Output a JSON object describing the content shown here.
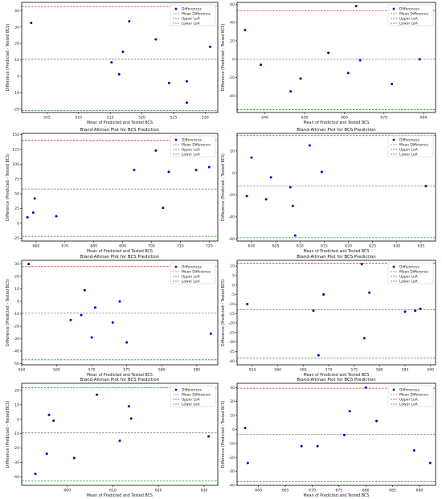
{
  "colors": {
    "points": "#0000cc",
    "mean_line": "#808080",
    "upper_loa": "#e02020",
    "lower_loa": "#1a9a1a"
  },
  "legend": [
    "Differences",
    "Mean Difference",
    "Upper LoA",
    "Lower LoA"
  ],
  "chart_data": [
    {
      "type": "scatter",
      "title": "Bland-Altman Plot for BCS Prediction",
      "xlabel": "Mean of Predicted and Tested BCS",
      "ylabel": "Difference (Predicted - Tested BCS)",
      "xlim": [
        501,
        532
      ],
      "ylim": [
        -22,
        45
      ],
      "xticks": [
        505,
        510,
        515,
        520,
        525,
        530
      ],
      "yticks": [
        -20,
        -10,
        0,
        10,
        20,
        30,
        40
      ],
      "mean": 10.5,
      "upper_loa": 42.5,
      "lower_loa": -20.7,
      "legend_position": "top-right",
      "x": [
        502.5,
        515.2,
        516.4,
        517,
        518,
        522.2,
        524.3,
        527.1,
        527.1,
        530.8
      ],
      "y": [
        32.5,
        8.5,
        1.2,
        15,
        33.5,
        22.5,
        -4,
        -3,
        -16,
        18
      ]
    },
    {
      "type": "scatter",
      "title": "Bland-Altman Plot for BCS Prediction",
      "xlabel": "Mean of Predicted and Tested BCS",
      "ylabel": "Difference (Predicted - Tested BCS)",
      "xlim": [
        633,
        683
      ],
      "ylim": [
        -58,
        62
      ],
      "xticks": [
        640,
        650,
        660,
        670,
        680
      ],
      "yticks": [
        -40,
        -20,
        0,
        20,
        40,
        60
      ],
      "mean": 0,
      "upper_loa": 53,
      "lower_loa": -55,
      "legend_position": "top-right",
      "x": [
        635,
        639,
        646.5,
        649,
        656,
        661,
        663,
        664,
        672,
        679
      ],
      "y": [
        32,
        -6,
        -35,
        -21,
        7,
        -15,
        58,
        -1,
        -27,
        0
      ]
    },
    {
      "type": "scatter",
      "title": "Bland-Altman Plot for BCS Prediction",
      "xlabel": "Mean of Predicted and Tested BCS",
      "ylabel": "Difference (Predicted - Tested BCS)",
      "xlim": [
        655,
        723
      ],
      "ylim": [
        -30,
        152
      ],
      "xticks": [
        660,
        670,
        680,
        690,
        700,
        710,
        720
      ],
      "yticks": [
        -25,
        0,
        25,
        50,
        75,
        100,
        125,
        150
      ],
      "mean": 58,
      "upper_loa": 140,
      "lower_loa": -22,
      "legend_position": "top-right",
      "x": [
        657,
        659,
        659.5,
        667,
        694,
        701.5,
        704,
        706,
        715.5,
        720
      ],
      "y": [
        10,
        18,
        42,
        12,
        90,
        123,
        26,
        87,
        90,
        95
      ]
    },
    {
      "type": "scatter",
      "title": "Bland-Altman Plot for BCS Prediction",
      "xlabel": "Mean of Predicted and Tested BCS",
      "ylabel": "Difference (Predicted - Tested BCS)",
      "xlim": [
        597,
        638
      ],
      "ylim": [
        -62,
        36
      ],
      "xticks": [
        600,
        605,
        610,
        615,
        620,
        625,
        630,
        635
      ],
      "yticks": [
        -60,
        -40,
        -20,
        0,
        20
      ],
      "mean": -12,
      "upper_loa": 34,
      "lower_loa": -59,
      "legend_position": "top-right",
      "x": [
        599,
        600,
        603,
        604,
        608,
        608.5,
        609,
        612,
        614.5,
        636
      ],
      "y": [
        -21,
        14,
        -24,
        -4,
        -13,
        -30,
        -57,
        25,
        1,
        -12
      ]
    },
    {
      "type": "scatter",
      "title": "Bland-Altman Plot for BCS Prediction",
      "xlabel": "Mean of Predicted and Tested BCS",
      "ylabel": "Difference (Predicted - Tested BCS)",
      "xlim": [
        560,
        588
      ],
      "ylim": [
        -51,
        33
      ],
      "xticks": [
        560,
        565,
        570,
        575,
        580,
        585
      ],
      "yticks": [
        -50,
        -40,
        -30,
        -20,
        -10,
        0,
        10,
        20,
        30
      ],
      "mean": -9.5,
      "upper_loa": 28,
      "lower_loa": -47,
      "legend_position": "top-right",
      "x": [
        561,
        567,
        568.5,
        569,
        570,
        570.5,
        573,
        574,
        575,
        587
      ],
      "y": [
        30,
        -15,
        -11,
        9,
        -29,
        -5,
        -17,
        0,
        -33,
        -26
      ]
    },
    {
      "type": "scatter",
      "title": "Bland-Altman Plot for BCS Prediction",
      "xlabel": "Mean of Predicted and Tested BCS",
      "ylabel": "Difference (Predicted - Tested BCS)",
      "xlim": [
        552,
        591
      ],
      "ylim": [
        -42,
        13
      ],
      "xticks": [
        555,
        560,
        565,
        570,
        575,
        580,
        585,
        590
      ],
      "yticks": [
        -40,
        -35,
        -30,
        -25,
        -20,
        -15,
        -10,
        -5,
        0,
        5,
        10
      ],
      "mean": -13,
      "upper_loa": 11.5,
      "lower_loa": -38.5,
      "legend_position": "top-right",
      "x": [
        554,
        567,
        568,
        569,
        576.5,
        577,
        578,
        585,
        587,
        588
      ],
      "y": [
        -10,
        -13.5,
        -37,
        -5,
        11,
        -28,
        -4,
        -14,
        -13.5,
        -12.5
      ]
    },
    {
      "type": "scatter",
      "title": "Bland-Altman Plot for BCS Prediction",
      "xlabel": "Mean of Predicted and Tested BCS",
      "ylabel": "Difference (Predicted - Tested BCS)",
      "xlim": [
        590,
        633
      ],
      "ylim": [
        -46,
        25
      ],
      "xticks": [
        600,
        610,
        620,
        630
      ],
      "yticks": [
        -40,
        -30,
        -20,
        -10,
        0,
        10,
        20
      ],
      "mean": -9.5,
      "upper_loa": 22,
      "lower_loa": -43,
      "legend_position": "top-right",
      "x": [
        593,
        595.5,
        596,
        597,
        601.5,
        606.5,
        611.5,
        613.5,
        614,
        631
      ],
      "y": [
        -38,
        -24,
        3,
        -1,
        -27,
        17,
        -15,
        9,
        0.5,
        -12
      ]
    },
    {
      "type": "scatter",
      "title": "Bland-Altman Plot for BCS Prediction",
      "xlabel": "Mean of Predicted and Tested BCS",
      "ylabel": "Difference (Predicted - Tested BCS)",
      "xlim": [
        656,
        693
      ],
      "ylim": [
        -40,
        33
      ],
      "xticks": [
        660,
        665,
        670,
        675,
        680,
        685,
        690
      ],
      "yticks": [
        -40,
        -30,
        -20,
        -10,
        0,
        10,
        20,
        30
      ],
      "mean": -3.5,
      "upper_loa": 29.5,
      "lower_loa": -37.5,
      "legend_position": "top-right",
      "x": [
        657.5,
        658,
        668,
        671,
        676,
        677,
        680,
        682,
        689,
        692
      ],
      "y": [
        1,
        -24,
        -12,
        -12,
        -4,
        13,
        30,
        6,
        -15,
        -24
      ]
    }
  ]
}
